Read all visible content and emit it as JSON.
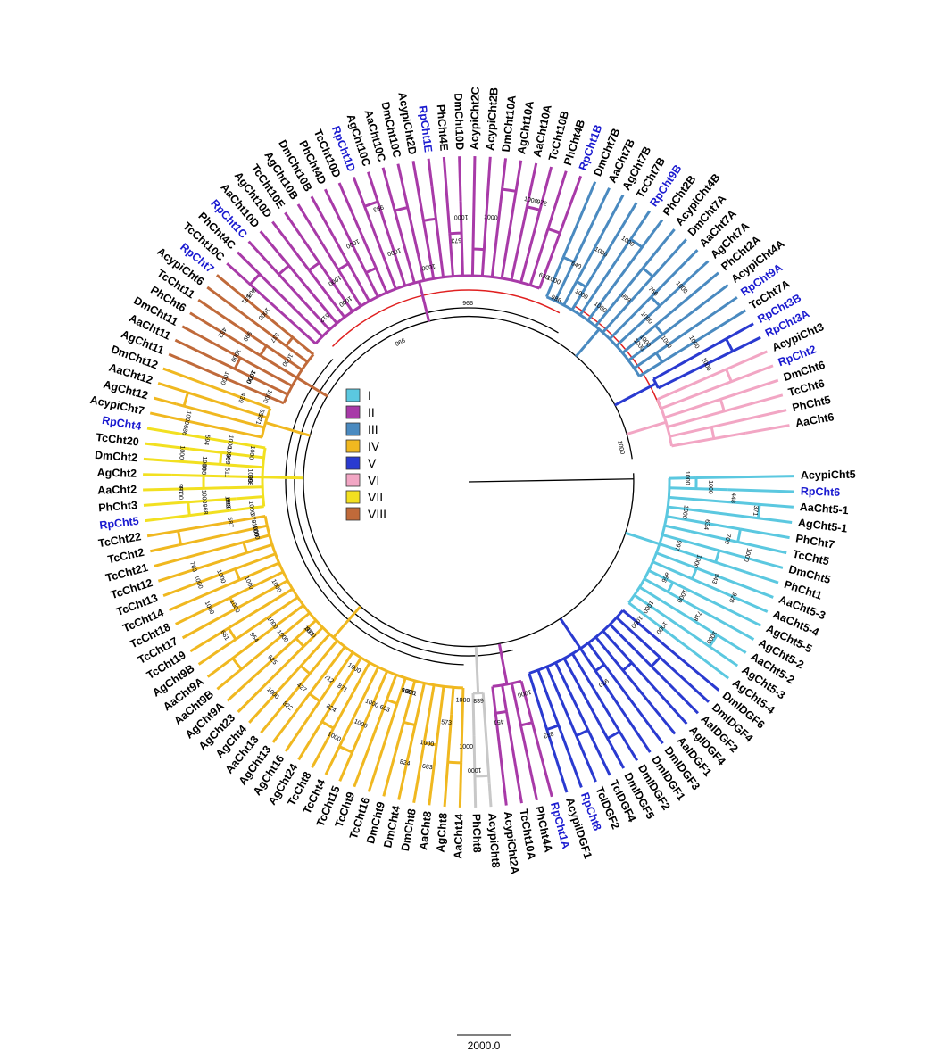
{
  "legend": {
    "items": [
      {
        "label": "I",
        "color": "#5bc8e0"
      },
      {
        "label": "II",
        "color": "#a83aa8"
      },
      {
        "label": "III",
        "color": "#4a8ac0"
      },
      {
        "label": "IV",
        "color": "#f0b820"
      },
      {
        "label": "V",
        "color": "#2a3ad0"
      },
      {
        "label": "VI",
        "color": "#f2a6c4"
      },
      {
        "label": "VII",
        "color": "#f2e020"
      },
      {
        "label": "VIII",
        "color": "#c06a3a"
      }
    ]
  },
  "colors": {
    "backbone": "#000000",
    "highlight": "#e02020",
    "rp_label": "#1a1ad0",
    "plain_label": "#000000"
  },
  "scale_bar": {
    "label": "2000.0"
  },
  "tips": [
    {
      "name": "AcypiCht5",
      "clade": "I"
    },
    {
      "name": "RpCht6",
      "clade": "I",
      "rp": true
    },
    {
      "name": "AaCht5-1",
      "clade": "I"
    },
    {
      "name": "AgCht5-1",
      "clade": "I"
    },
    {
      "name": "PhCht7",
      "clade": "I"
    },
    {
      "name": "TcCht5",
      "clade": "I"
    },
    {
      "name": "DmCht5",
      "clade": "I"
    },
    {
      "name": "PhCht1",
      "clade": "I"
    },
    {
      "name": "AaCht5-3",
      "clade": "I"
    },
    {
      "name": "AaCht5-4",
      "clade": "I"
    },
    {
      "name": "AgCht5-5",
      "clade": "I"
    },
    {
      "name": "AgCht5-2",
      "clade": "I"
    },
    {
      "name": "AaCht5-2",
      "clade": "I"
    },
    {
      "name": "AgCht5-3",
      "clade": "I"
    },
    {
      "name": "AgCht5-4",
      "clade": "I"
    },
    {
      "name": "DmIDGF6",
      "clade": "V"
    },
    {
      "name": "DmIDGF4",
      "clade": "V"
    },
    {
      "name": "AaIDGF2",
      "clade": "V"
    },
    {
      "name": "AgIDGF4",
      "clade": "V"
    },
    {
      "name": "AaIDGF1",
      "clade": "V"
    },
    {
      "name": "DmIDGF3",
      "clade": "V"
    },
    {
      "name": "DmIDGF1",
      "clade": "V"
    },
    {
      "name": "DmIDGF2",
      "clade": "V"
    },
    {
      "name": "DmIDGF5",
      "clade": "V"
    },
    {
      "name": "TcIDGF4",
      "clade": "V"
    },
    {
      "name": "TcIDGF2",
      "clade": "V"
    },
    {
      "name": "RpCht8",
      "clade": "V",
      "rp": true
    },
    {
      "name": "AcypiIDGF1",
      "clade": "V"
    },
    {
      "name": "RpCht1A",
      "clade": "II",
      "rp": true
    },
    {
      "name": "PhCht4A",
      "clade": "II"
    },
    {
      "name": "TcCht10A",
      "clade": "II"
    },
    {
      "name": "AcypiCht2A",
      "clade": "II"
    },
    {
      "name": "AcypiCht8",
      "clade": "none"
    },
    {
      "name": "PhCht8",
      "clade": "none"
    },
    {
      "name": "AaCht14",
      "clade": "IV"
    },
    {
      "name": "AgCht8",
      "clade": "IV"
    },
    {
      "name": "AaCht8",
      "clade": "IV"
    },
    {
      "name": "DmCht8",
      "clade": "IV"
    },
    {
      "name": "DmCht4",
      "clade": "IV"
    },
    {
      "name": "DmCht9",
      "clade": "IV"
    },
    {
      "name": "TcCht16",
      "clade": "IV"
    },
    {
      "name": "TcCht9",
      "clade": "IV"
    },
    {
      "name": "TcCht15",
      "clade": "IV"
    },
    {
      "name": "TcCht4",
      "clade": "IV"
    },
    {
      "name": "TcCht8",
      "clade": "IV"
    },
    {
      "name": "AgCht24",
      "clade": "IV"
    },
    {
      "name": "AgCht16",
      "clade": "IV"
    },
    {
      "name": "AgCht13",
      "clade": "IV"
    },
    {
      "name": "AaCht13",
      "clade": "IV"
    },
    {
      "name": "AgCht4",
      "clade": "IV"
    },
    {
      "name": "AgCht23",
      "clade": "IV"
    },
    {
      "name": "AgCht9A",
      "clade": "IV"
    },
    {
      "name": "AaCht9B",
      "clade": "IV"
    },
    {
      "name": "AaCht9A",
      "clade": "IV"
    },
    {
      "name": "AgCht9B",
      "clade": "IV"
    },
    {
      "name": "TcCht19",
      "clade": "IV"
    },
    {
      "name": "TcCht17",
      "clade": "IV"
    },
    {
      "name": "TcCht18",
      "clade": "IV"
    },
    {
      "name": "TcCht14",
      "clade": "IV"
    },
    {
      "name": "TcCht13",
      "clade": "IV"
    },
    {
      "name": "TcCht12",
      "clade": "IV"
    },
    {
      "name": "TcCht21",
      "clade": "IV"
    },
    {
      "name": "TcCht2",
      "clade": "IV"
    },
    {
      "name": "TcCht22",
      "clade": "IV"
    },
    {
      "name": "RpCht5",
      "clade": "VII",
      "rp": true
    },
    {
      "name": "PhCht3",
      "clade": "VII"
    },
    {
      "name": "AaCht2",
      "clade": "VII"
    },
    {
      "name": "AgCht2",
      "clade": "VII"
    },
    {
      "name": "DmCht2",
      "clade": "VII"
    },
    {
      "name": "TcCht20",
      "clade": "VII"
    },
    {
      "name": "RpCht4",
      "clade": "VII",
      "rp": true
    },
    {
      "name": "AcypiCht7",
      "clade": "IV"
    },
    {
      "name": "AgCht12",
      "clade": "IV"
    },
    {
      "name": "AaCht12",
      "clade": "IV"
    },
    {
      "name": "DmCht12",
      "clade": "IV"
    },
    {
      "name": "AgCht11",
      "clade": "VIII"
    },
    {
      "name": "AaCht11",
      "clade": "VIII"
    },
    {
      "name": "DmCht11",
      "clade": "VIII"
    },
    {
      "name": "PhCht6",
      "clade": "VIII"
    },
    {
      "name": "TcCht11",
      "clade": "VIII"
    },
    {
      "name": "AcypiCht6",
      "clade": "VIII"
    },
    {
      "name": "RpCht7",
      "clade": "VIII",
      "rp": true
    },
    {
      "name": "TcCht10C",
      "clade": "II"
    },
    {
      "name": "PhCht4C",
      "clade": "II"
    },
    {
      "name": "RpCht1C",
      "clade": "II",
      "rp": true
    },
    {
      "name": "AaCht10D",
      "clade": "II"
    },
    {
      "name": "AgCht10D",
      "clade": "II"
    },
    {
      "name": "TcCht10E",
      "clade": "II"
    },
    {
      "name": "AgCht10B",
      "clade": "II"
    },
    {
      "name": "DmCht10B",
      "clade": "II"
    },
    {
      "name": "PhCht4D",
      "clade": "II"
    },
    {
      "name": "TcCht10D",
      "clade": "II"
    },
    {
      "name": "RpCht1D",
      "clade": "II",
      "rp": true
    },
    {
      "name": "AgCht10C",
      "clade": "II"
    },
    {
      "name": "AaCht10C",
      "clade": "II"
    },
    {
      "name": "DmCht10C",
      "clade": "II"
    },
    {
      "name": "AcypiCht2D",
      "clade": "II"
    },
    {
      "name": "RpCht1E",
      "clade": "II",
      "rp": true
    },
    {
      "name": "PhCht4E",
      "clade": "II"
    },
    {
      "name": "DmCht10D",
      "clade": "II"
    },
    {
      "name": "AcypiCht2C",
      "clade": "II"
    },
    {
      "name": "AcypiCht2B",
      "clade": "II"
    },
    {
      "name": "DmCht10A",
      "clade": "II"
    },
    {
      "name": "AgCht10A",
      "clade": "II"
    },
    {
      "name": "AaCht10A",
      "clade": "II"
    },
    {
      "name": "TcCht10B",
      "clade": "II"
    },
    {
      "name": "PhCht4B",
      "clade": "II"
    },
    {
      "name": "RpCht1B",
      "clade": "II",
      "rp": true
    },
    {
      "name": "DmCht7B",
      "clade": "III"
    },
    {
      "name": "AaCht7B",
      "clade": "III"
    },
    {
      "name": "AgCht7B",
      "clade": "III"
    },
    {
      "name": "TcCht7B",
      "clade": "III"
    },
    {
      "name": "RpCht9B",
      "clade": "III",
      "rp": true
    },
    {
      "name": "PhCht2B",
      "clade": "III"
    },
    {
      "name": "AcypiCht4B",
      "clade": "III"
    },
    {
      "name": "DmCht7A",
      "clade": "III"
    },
    {
      "name": "AaCht7A",
      "clade": "III"
    },
    {
      "name": "AgCht7A",
      "clade": "III"
    },
    {
      "name": "PhCht2A",
      "clade": "III"
    },
    {
      "name": "AcypiCht4A",
      "clade": "III"
    },
    {
      "name": "RpCht9A",
      "clade": "III",
      "rp": true
    },
    {
      "name": "TcCht7A",
      "clade": "III"
    },
    {
      "name": "RpCht3B",
      "clade": "V",
      "rp": true
    },
    {
      "name": "RpCht3A",
      "clade": "V",
      "rp": true
    },
    {
      "name": "AcypiCht3",
      "clade": "VI"
    },
    {
      "name": "RpCht2",
      "clade": "VI",
      "rp": true
    },
    {
      "name": "DmCht6",
      "clade": "VI"
    },
    {
      "name": "TcCht6",
      "clade": "VI"
    },
    {
      "name": "PhCht5",
      "clade": "VI"
    },
    {
      "name": "AaCht6",
      "clade": "VI"
    }
  ],
  "bootstrap": [
    {
      "text": "1000",
      "clade": "I"
    },
    {
      "text": "1000",
      "clade": "I"
    },
    {
      "text": "448",
      "clade": "I"
    },
    {
      "text": "371",
      "clade": "I"
    },
    {
      "text": "1000",
      "clade": "I"
    },
    {
      "text": "634",
      "clade": "I"
    },
    {
      "text": "709",
      "clade": "I"
    },
    {
      "text": "1000",
      "clade": "I"
    },
    {
      "text": "997",
      "clade": "I"
    },
    {
      "text": "1000",
      "clade": "I"
    },
    {
      "text": "943",
      "clade": "I"
    },
    {
      "text": "928",
      "clade": "I"
    },
    {
      "text": "856",
      "clade": "I"
    },
    {
      "text": "1000",
      "clade": "I"
    },
    {
      "text": "718",
      "clade": "I"
    },
    {
      "text": "1000",
      "clade": "I"
    },
    {
      "text": "1000",
      "clade": "I"
    },
    {
      "text": "1000",
      "clade": "I"
    },
    {
      "text": "1000",
      "clade": "V"
    },
    {
      "text": "970",
      "clade": "V"
    },
    {
      "text": "833",
      "clade": "V"
    },
    {
      "text": "1000",
      "clade": "V"
    },
    {
      "text": "701",
      "clade": "V"
    },
    {
      "text": "871",
      "clade": "V"
    },
    {
      "text": "625",
      "clade": "V"
    },
    {
      "text": "1000",
      "clade": "V"
    },
    {
      "text": "979",
      "clade": "V"
    },
    {
      "text": "1000",
      "clade": "V"
    },
    {
      "text": "1000",
      "clade": "V"
    },
    {
      "text": "531",
      "clade": "V"
    },
    {
      "text": "1000",
      "clade": "V"
    },
    {
      "text": "1000",
      "clade": "V"
    },
    {
      "text": "1000",
      "clade": "V"
    },
    {
      "text": "972",
      "clade": "V"
    },
    {
      "text": "1000",
      "clade": "V"
    },
    {
      "text": "1000",
      "clade": "II"
    },
    {
      "text": "451",
      "clade": "II"
    },
    {
      "text": "1000",
      "clade": "II"
    },
    {
      "text": "683",
      "clade": "II"
    },
    {
      "text": "1000",
      "clade": "II"
    },
    {
      "text": "688",
      "clade": "none"
    },
    {
      "text": "1000",
      "clade": "IV"
    },
    {
      "text": "573",
      "clade": "IV"
    },
    {
      "text": "1000",
      "clade": "IV"
    },
    {
      "text": "824",
      "clade": "IV"
    },
    {
      "text": "998",
      "clade": "IV"
    },
    {
      "text": "663",
      "clade": "IV"
    },
    {
      "text": "1000",
      "clade": "IV"
    },
    {
      "text": "1000",
      "clade": "IV"
    },
    {
      "text": "1000",
      "clade": "IV"
    },
    {
      "text": "712",
      "clade": "IV"
    },
    {
      "text": "427",
      "clade": "IV"
    },
    {
      "text": "1000",
      "clade": "IV"
    },
    {
      "text": "971",
      "clade": "IV"
    },
    {
      "text": "1000",
      "clade": "IV"
    },
    {
      "text": "964",
      "clade": "IV"
    },
    {
      "text": "661",
      "clade": "IV"
    },
    {
      "text": "1000",
      "clade": "IV"
    },
    {
      "text": "1000",
      "clade": "IV"
    },
    {
      "text": "1000",
      "clade": "IV"
    },
    {
      "text": "763",
      "clade": "IV"
    },
    {
      "text": "1000",
      "clade": "IV"
    },
    {
      "text": "587",
      "clade": "IV"
    },
    {
      "text": "968",
      "clade": "IV"
    },
    {
      "text": "1000",
      "clade": "IV"
    },
    {
      "text": "1000",
      "clade": "IV"
    },
    {
      "text": "999",
      "clade": "IV"
    },
    {
      "text": "594",
      "clade": "IV"
    },
    {
      "text": "1000",
      "clade": "IV"
    },
    {
      "text": "771",
      "clade": "IV"
    },
    {
      "text": "439",
      "clade": "IV"
    },
    {
      "text": "1000",
      "clade": "VII"
    },
    {
      "text": "663",
      "clade": "VII"
    },
    {
      "text": "1000",
      "clade": "VII"
    },
    {
      "text": "997",
      "clade": "VII"
    },
    {
      "text": "998",
      "clade": "VII"
    },
    {
      "text": "511",
      "clade": "VII"
    },
    {
      "text": "1000",
      "clade": "VII"
    },
    {
      "text": "1000",
      "clade": "VII"
    },
    {
      "text": "1000",
      "clade": "VII"
    },
    {
      "text": "1000",
      "clade": "VII"
    },
    {
      "text": "1000",
      "clade": "VIII"
    },
    {
      "text": "1000",
      "clade": "VIII"
    },
    {
      "text": "1000",
      "clade": "VIII"
    },
    {
      "text": "452",
      "clade": "VIII"
    },
    {
      "text": "1000",
      "clade": "VIII"
    },
    {
      "text": "537",
      "clade": "VIII"
    },
    {
      "text": "1000",
      "clade": "VIII"
    },
    {
      "text": "1000",
      "clade": "II"
    },
    {
      "text": "824",
      "clade": "II"
    },
    {
      "text": "822",
      "clade": "II"
    },
    {
      "text": "1000",
      "clade": "II"
    },
    {
      "text": "1000",
      "clade": "II"
    },
    {
      "text": "1000",
      "clade": "II"
    },
    {
      "text": "1000",
      "clade": "II"
    },
    {
      "text": "1000",
      "clade": "II"
    },
    {
      "text": "1000",
      "clade": "II"
    },
    {
      "text": "998",
      "clade": "II"
    },
    {
      "text": "686",
      "clade": "II"
    },
    {
      "text": "557",
      "clade": "II"
    },
    {
      "text": "1000",
      "clade": "II"
    },
    {
      "text": "999",
      "clade": "II"
    },
    {
      "text": "808",
      "clade": "II"
    },
    {
      "text": "612",
      "clade": "II"
    },
    {
      "text": "1000",
      "clade": "II"
    },
    {
      "text": "1000",
      "clade": "II"
    },
    {
      "text": "993",
      "clade": "II"
    },
    {
      "text": "1000",
      "clade": "II"
    },
    {
      "text": "573",
      "clade": "II"
    },
    {
      "text": "1000",
      "clade": "II"
    },
    {
      "text": "1000",
      "clade": "II"
    },
    {
      "text": "638",
      "clade": "II"
    },
    {
      "text": "1000",
      "clade": "III"
    },
    {
      "text": "640",
      "clade": "III"
    },
    {
      "text": "1000",
      "clade": "III"
    },
    {
      "text": "1000",
      "clade": "III"
    },
    {
      "text": "1000",
      "clade": "III"
    },
    {
      "text": "999",
      "clade": "III"
    },
    {
      "text": "766",
      "clade": "III"
    },
    {
      "text": "1000",
      "clade": "III"
    },
    {
      "text": "1000",
      "clade": "III"
    },
    {
      "text": "1000",
      "clade": "III"
    },
    {
      "text": "1000",
      "clade": "III"
    },
    {
      "text": "1000",
      "clade": "V"
    },
    {
      "text": "1000",
      "clade": "V"
    },
    {
      "text": "990",
      "clade": "backbone"
    },
    {
      "text": "996",
      "clade": "backbone"
    },
    {
      "text": "986",
      "clade": "backbone"
    },
    {
      "text": "1000",
      "clade": "backbone"
    },
    {
      "text": "1000",
      "clade": "backbone"
    }
  ]
}
